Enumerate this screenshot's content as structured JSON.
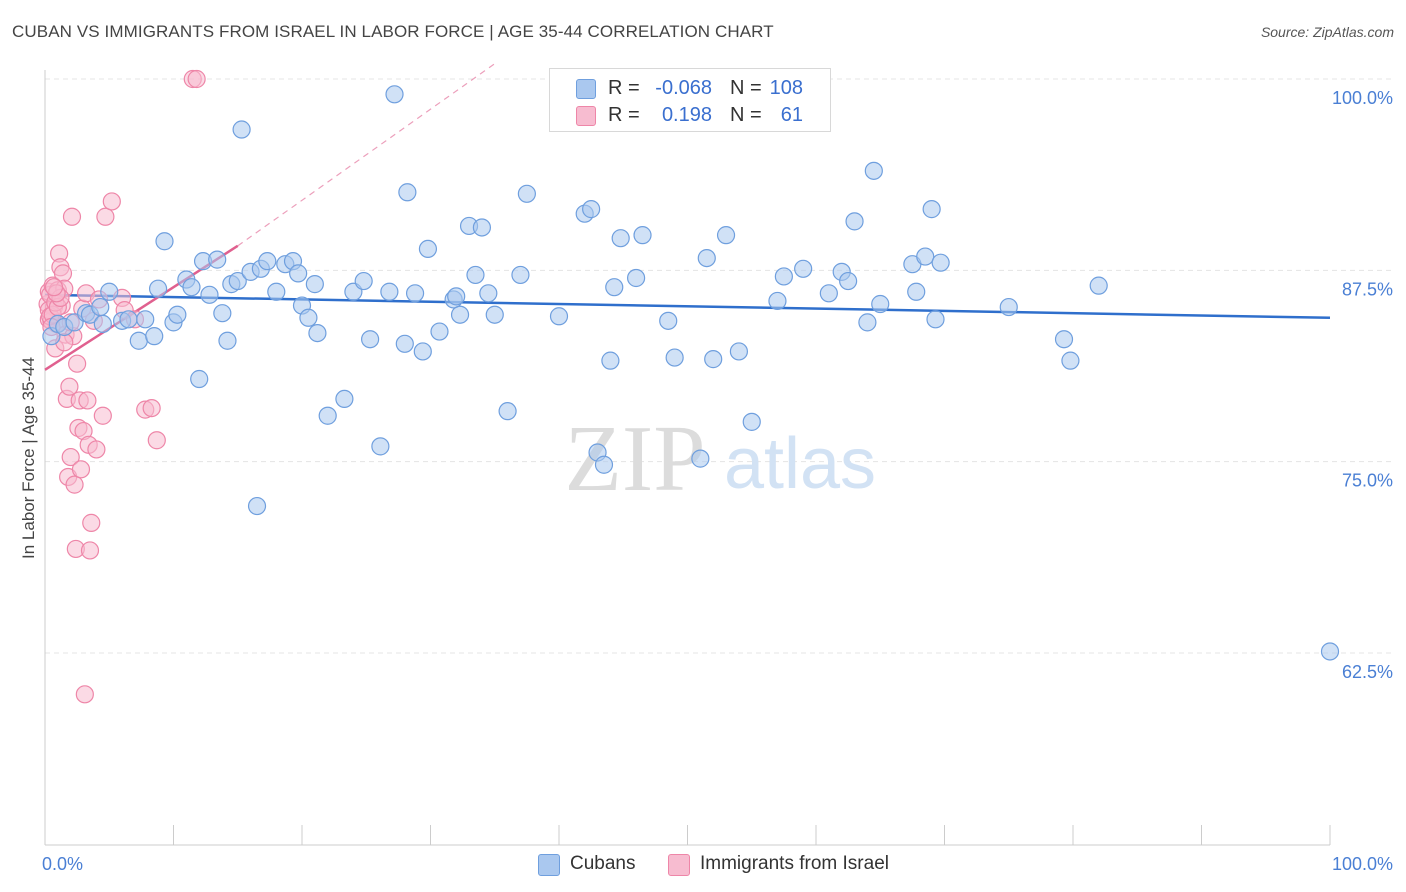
{
  "title": "CUBAN VS IMMIGRANTS FROM ISRAEL IN LABOR FORCE | AGE 35-44 CORRELATION CHART",
  "source": "Source: ZipAtlas.com",
  "watermark": {
    "zip": "ZIP",
    "atlas": "atlas"
  },
  "colors": {
    "cubans_fill": "#aac8ef",
    "cubans_stroke": "#6f9fde",
    "cubans_line": "#2f6fcc",
    "israel_fill": "#f7bcd0",
    "israel_stroke": "#ee86a8",
    "israel_line": "#e0608f",
    "tick_label": "#4a7fd4",
    "grid": "#e4e4e4"
  },
  "legend": {
    "rows": [
      {
        "r_label": "R =",
        "r_value": "-0.068",
        "n_label": "N =",
        "n_value": "108"
      },
      {
        "r_label": "R =",
        "r_value": "0.198",
        "n_label": "N =",
        "n_value": "61"
      }
    ]
  },
  "chart_data": {
    "type": "scatter",
    "title": "CUBAN VS IMMIGRANTS FROM ISRAEL IN LABOR FORCE | AGE 35-44 CORRELATION CHART",
    "xlabel": "",
    "ylabel": "In Labor Force | Age 35-44",
    "xlim": [
      0,
      100
    ],
    "ylim": [
      50,
      101
    ],
    "x_tick_labels": [
      "0.0%",
      "100.0%"
    ],
    "y_ticks": [
      62.5,
      75.0,
      87.5,
      100.0
    ],
    "y_tick_labels": [
      "62.5%",
      "75.0%",
      "87.5%",
      "100.0%"
    ],
    "grid": true,
    "legend_position": "bottom",
    "series": [
      {
        "name": "Cubans",
        "points": [
          [
            0.5,
            83.2
          ],
          [
            1.0,
            84.0
          ],
          [
            1.5,
            83.8
          ],
          [
            2.3,
            84.1
          ],
          [
            3.2,
            84.7
          ],
          [
            3.5,
            84.6
          ],
          [
            4.3,
            85.1
          ],
          [
            4.5,
            84.0
          ],
          [
            5.0,
            86.1
          ],
          [
            6.0,
            84.2
          ],
          [
            6.5,
            84.3
          ],
          [
            7.3,
            82.9
          ],
          [
            7.8,
            84.3
          ],
          [
            8.5,
            83.2
          ],
          [
            8.8,
            86.3
          ],
          [
            9.3,
            89.4
          ],
          [
            10.0,
            84.1
          ],
          [
            10.3,
            84.6
          ],
          [
            11.0,
            86.9
          ],
          [
            11.4,
            86.4
          ],
          [
            12.0,
            80.4
          ],
          [
            12.3,
            88.1
          ],
          [
            12.8,
            85.9
          ],
          [
            13.4,
            88.2
          ],
          [
            13.8,
            84.7
          ],
          [
            14.2,
            82.9
          ],
          [
            14.5,
            86.6
          ],
          [
            15.0,
            86.8
          ],
          [
            15.3,
            96.7
          ],
          [
            16.0,
            87.4
          ],
          [
            16.5,
            72.1
          ],
          [
            16.8,
            87.6
          ],
          [
            17.3,
            88.1
          ],
          [
            18.0,
            86.1
          ],
          [
            18.7,
            87.9
          ],
          [
            19.3,
            88.1
          ],
          [
            19.7,
            87.3
          ],
          [
            20.0,
            85.2
          ],
          [
            20.5,
            84.4
          ],
          [
            21.0,
            86.6
          ],
          [
            21.2,
            83.4
          ],
          [
            22.0,
            78.0
          ],
          [
            23.3,
            79.1
          ],
          [
            24.0,
            86.1
          ],
          [
            24.8,
            86.8
          ],
          [
            25.3,
            83.0
          ],
          [
            26.1,
            76.0
          ],
          [
            26.8,
            86.1
          ],
          [
            27.2,
            99.0
          ],
          [
            28.0,
            82.7
          ],
          [
            28.2,
            92.6
          ],
          [
            28.8,
            86.0
          ],
          [
            29.4,
            82.2
          ],
          [
            29.8,
            88.9
          ],
          [
            30.7,
            83.5
          ],
          [
            31.8,
            85.6
          ],
          [
            32.0,
            85.8
          ],
          [
            32.3,
            84.6
          ],
          [
            33.0,
            90.4
          ],
          [
            33.5,
            87.2
          ],
          [
            34.0,
            90.3
          ],
          [
            34.5,
            86.0
          ],
          [
            35.0,
            84.6
          ],
          [
            36.0,
            78.3
          ],
          [
            37.0,
            87.2
          ],
          [
            37.5,
            92.5
          ],
          [
            40.0,
            84.5
          ],
          [
            42.0,
            91.2
          ],
          [
            42.5,
            91.5
          ],
          [
            43.0,
            75.6
          ],
          [
            43.5,
            74.8
          ],
          [
            44.0,
            81.6
          ],
          [
            44.3,
            86.4
          ],
          [
            44.8,
            89.6
          ],
          [
            46.0,
            87.0
          ],
          [
            46.5,
            89.8
          ],
          [
            48.5,
            84.2
          ],
          [
            49.0,
            81.8
          ],
          [
            51.0,
            75.2
          ],
          [
            51.5,
            88.3
          ],
          [
            52.0,
            81.7
          ],
          [
            53.0,
            89.8
          ],
          [
            54.0,
            82.2
          ],
          [
            55.0,
            77.6
          ],
          [
            57.0,
            85.5
          ],
          [
            57.5,
            87.1
          ],
          [
            59.0,
            87.6
          ],
          [
            61.0,
            86.0
          ],
          [
            62.0,
            87.4
          ],
          [
            62.5,
            86.8
          ],
          [
            63.0,
            90.7
          ],
          [
            64.0,
            84.1
          ],
          [
            64.5,
            94.0
          ],
          [
            65.0,
            85.3
          ],
          [
            67.5,
            87.9
          ],
          [
            67.8,
            86.1
          ],
          [
            68.5,
            88.4
          ],
          [
            69.0,
            91.5
          ],
          [
            69.3,
            84.3
          ],
          [
            69.7,
            88.0
          ],
          [
            75.0,
            85.1
          ],
          [
            79.3,
            83.0
          ],
          [
            79.8,
            81.6
          ],
          [
            82.0,
            86.5
          ],
          [
            100.0,
            62.6
          ]
        ]
      },
      {
        "name": "Immigrants from Israel",
        "points": [
          [
            0.2,
            85.3
          ],
          [
            0.3,
            84.3
          ],
          [
            0.3,
            86.1
          ],
          [
            0.4,
            85.9
          ],
          [
            0.5,
            84.2
          ],
          [
            0.6,
            86.5
          ],
          [
            0.7,
            85.1
          ],
          [
            0.8,
            82.4
          ],
          [
            0.9,
            84.0
          ],
          [
            1.0,
            86.2
          ],
          [
            1.1,
            88.6
          ],
          [
            1.2,
            87.7
          ],
          [
            1.3,
            85.2
          ],
          [
            1.4,
            87.3
          ],
          [
            1.5,
            86.3
          ],
          [
            1.6,
            83.3
          ],
          [
            1.7,
            79.1
          ],
          [
            1.8,
            74.0
          ],
          [
            1.9,
            79.9
          ],
          [
            2.0,
            75.3
          ],
          [
            2.1,
            91.0
          ],
          [
            2.2,
            83.2
          ],
          [
            2.3,
            73.5
          ],
          [
            2.4,
            69.3
          ],
          [
            2.5,
            81.4
          ],
          [
            2.6,
            77.2
          ],
          [
            2.7,
            79.0
          ],
          [
            2.8,
            74.5
          ],
          [
            2.9,
            85.0
          ],
          [
            3.0,
            77.0
          ],
          [
            3.1,
            59.8
          ],
          [
            3.2,
            86.0
          ],
          [
            3.3,
            79.0
          ],
          [
            3.4,
            76.1
          ],
          [
            3.5,
            69.2
          ],
          [
            3.6,
            71.0
          ],
          [
            3.8,
            84.2
          ],
          [
            4.0,
            75.8
          ],
          [
            4.2,
            85.6
          ],
          [
            4.5,
            78.0
          ],
          [
            4.7,
            91.0
          ],
          [
            5.2,
            92.0
          ],
          [
            6.0,
            85.7
          ],
          [
            6.2,
            84.9
          ],
          [
            7.0,
            84.3
          ],
          [
            7.8,
            78.4
          ],
          [
            8.3,
            78.5
          ],
          [
            8.7,
            76.4
          ],
          [
            11.5,
            100.0
          ],
          [
            11.8,
            100.0
          ],
          [
            0.3,
            84.9
          ],
          [
            0.4,
            84.5
          ],
          [
            0.6,
            84.6
          ],
          [
            0.8,
            85.4
          ],
          [
            1.0,
            85.1
          ],
          [
            0.5,
            83.8
          ],
          [
            1.2,
            85.7
          ],
          [
            0.9,
            86.0
          ],
          [
            1.5,
            82.8
          ],
          [
            2.0,
            84.1
          ],
          [
            0.7,
            86.4
          ]
        ]
      }
    ],
    "trend_lines": [
      {
        "series": "Cubans",
        "x": [
          0,
          100
        ],
        "y": [
          85.9,
          84.4
        ]
      },
      {
        "series": "Immigrants from Israel",
        "x": [
          0,
          15
        ],
        "y": [
          81.0,
          89.1
        ],
        "extended_to": [
          35,
          101
        ]
      }
    ]
  },
  "bottom_legend": {
    "items": [
      {
        "label": "Cubans"
      },
      {
        "label": "Immigrants from Israel"
      }
    ]
  }
}
